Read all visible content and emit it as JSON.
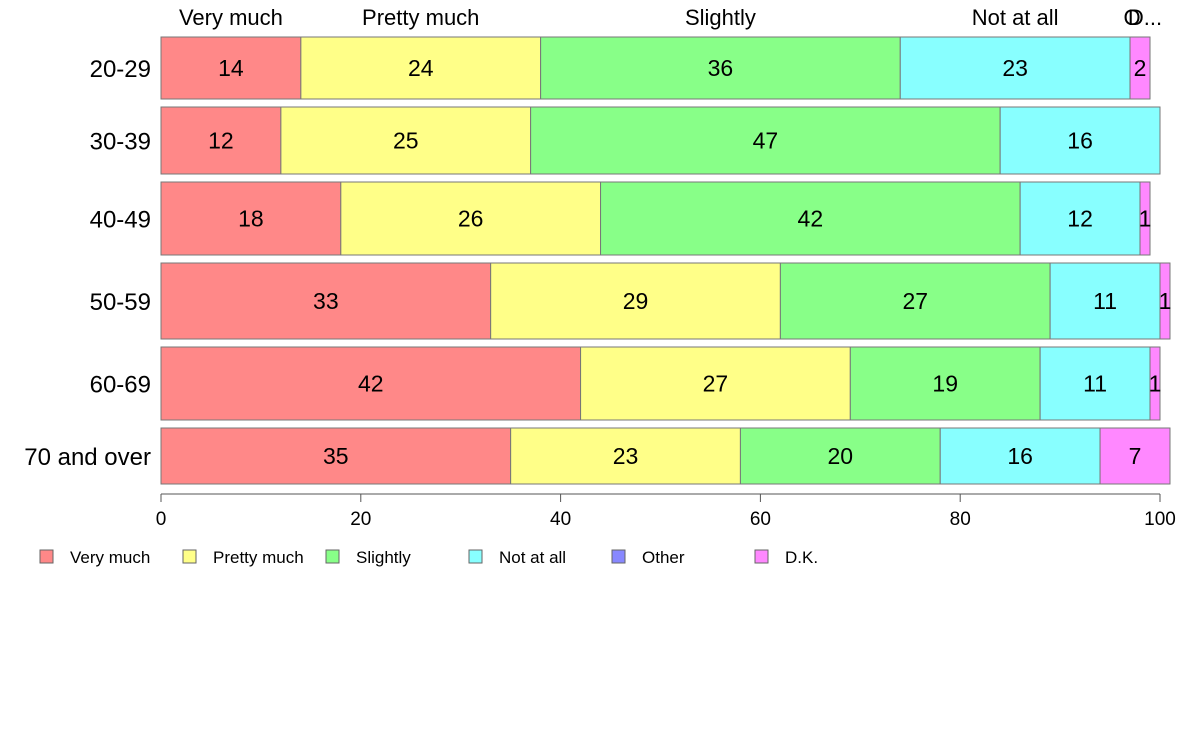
{
  "chart_data": {
    "type": "bar",
    "orientation": "horizontal",
    "stacked": true,
    "categories": [
      "20-29",
      "30-39",
      "40-49",
      "50-59",
      "60-69",
      "70 and over"
    ],
    "series": [
      {
        "name": "Very much",
        "color": "#ff8888",
        "values": [
          14,
          12,
          18,
          33,
          42,
          35
        ],
        "labels": [
          "14",
          "12",
          "18",
          "33",
          "42",
          "35"
        ]
      },
      {
        "name": "Pretty much",
        "color": "#ffff88",
        "values": [
          24,
          25,
          26,
          29,
          27,
          23
        ],
        "labels": [
          "24",
          "25",
          "26",
          "29",
          "27",
          "23"
        ]
      },
      {
        "name": "Slightly",
        "color": "#88ff88",
        "values": [
          36,
          47,
          42,
          27,
          19,
          20
        ],
        "labels": [
          "36",
          "47",
          "42",
          "27",
          "19",
          "20"
        ]
      },
      {
        "name": "Not at all",
        "color": "#88ffff",
        "values": [
          23,
          16,
          12,
          11,
          11,
          16
        ],
        "labels": [
          "23",
          "16",
          "12",
          "11",
          "11",
          "16"
        ]
      },
      {
        "name": "Other",
        "color": "#8888ff",
        "values": [
          0,
          0,
          0,
          0,
          0,
          0
        ],
        "labels": [
          "",
          "",
          "",
          "",
          "",
          ""
        ]
      },
      {
        "name": "D.K.",
        "color": "#ff88ff",
        "values": [
          2,
          0,
          1,
          1,
          1,
          7
        ],
        "labels": [
          "2",
          "",
          "1",
          "1",
          "1",
          "7"
        ]
      }
    ],
    "top_labels": [
      "Very much",
      "Pretty much",
      "Slightly",
      "Not at all",
      "O",
      "D..."
    ],
    "xlim": [
      0,
      100
    ],
    "x_ticks": [
      "0",
      "20",
      "40",
      "60",
      "80",
      "100"
    ],
    "legend_position": "bottom",
    "grid": false
  }
}
